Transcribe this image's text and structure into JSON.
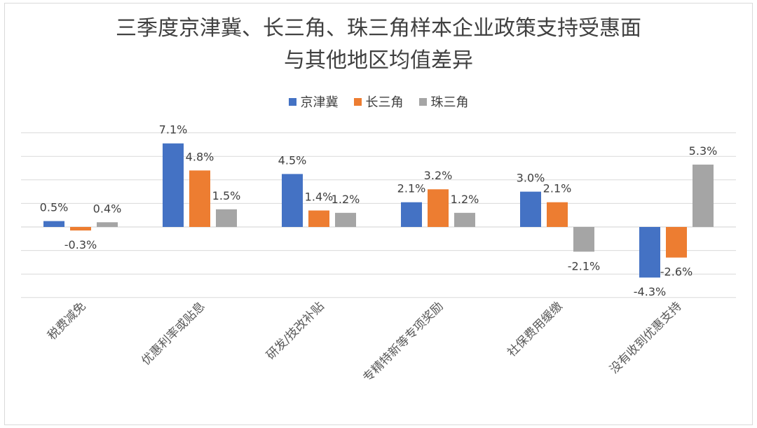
{
  "chart_data": {
    "type": "bar",
    "title_lines": [
      "三季度京津冀、长三角、珠三角样本企业政策支持受惠面",
      "与其他地区均值差异"
    ],
    "categories": [
      "税费减免",
      "优惠利率或贴息",
      "研发/技改补贴",
      "专精特新等专项奖励",
      "社保费用缓缴",
      "没有收到优惠支持"
    ],
    "series": [
      {
        "name": "京津冀",
        "color": "#4472c4",
        "values": [
          0.5,
          7.1,
          4.5,
          2.1,
          3.0,
          -4.3
        ]
      },
      {
        "name": "长三角",
        "color": "#ed7d31",
        "values": [
          -0.3,
          4.8,
          1.4,
          3.2,
          2.1,
          -2.6
        ]
      },
      {
        "name": "珠三角",
        "color": "#a5a5a5",
        "values": [
          0.4,
          1.5,
          1.2,
          1.2,
          -2.1,
          5.3
        ]
      }
    ],
    "value_suffix": "%",
    "ylim": [
      -6,
      8
    ],
    "grid": true,
    "legend_position": "top"
  }
}
